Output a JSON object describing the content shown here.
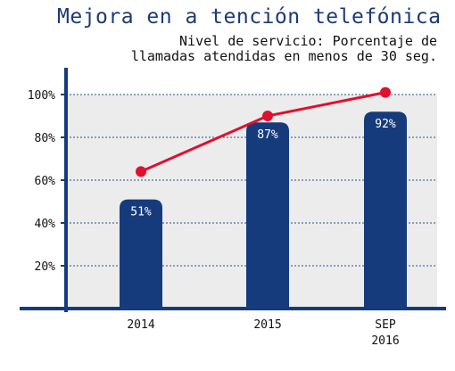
{
  "chart_data": {
    "type": "bar",
    "title": "Mejora en a tención telefónica",
    "subtitle_lines": [
      "Nivel de servicio: Porcentaje de",
      "llamadas atendidas en menos de 30 seg."
    ],
    "categories": [
      "2014",
      "2015",
      "SEP 2016"
    ],
    "category_label_lines": [
      [
        "2014"
      ],
      [
        "2015"
      ],
      [
        "SEP",
        "2016"
      ]
    ],
    "values": [
      51,
      87,
      92
    ],
    "value_labels": [
      "51%",
      "87%",
      "92%"
    ],
    "line_series": {
      "values": [
        64,
        90,
        101
      ]
    },
    "ylim": [
      0,
      110
    ],
    "yticks": [
      20,
      40,
      60,
      80,
      100
    ],
    "ytick_labels": [
      "20%",
      "40%",
      "60%",
      "80%",
      "100%"
    ],
    "grid": true,
    "colors": {
      "bar": "#163b7c",
      "line": "#e0102e",
      "plot_background": "#ececec",
      "grid": "#2b4f8f",
      "axis": "#163b7c",
      "title": "#1a3a7a"
    }
  }
}
